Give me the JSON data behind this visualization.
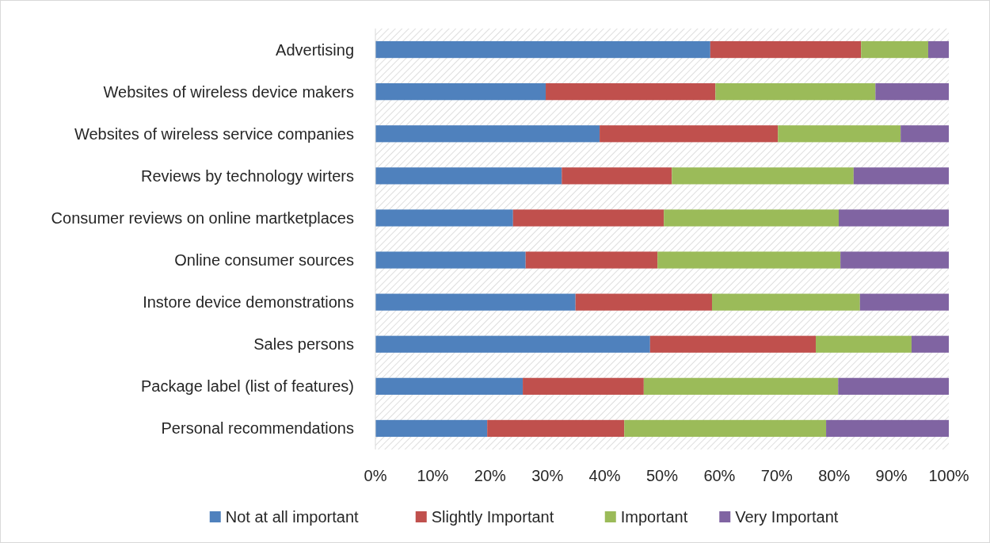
{
  "chart_data": {
    "type": "bar",
    "orientation": "horizontal",
    "stacked": true,
    "categories": [
      "Advertising",
      "Websites of wireless device makers",
      "Websites of wireless service companies",
      "Reviews by technology wirters",
      "Consumer reviews on online martketplaces",
      "Online consumer sources",
      "Instore device demonstrations",
      "Sales persons",
      "Package label (list of features)",
      "Personal recommendations"
    ],
    "series": [
      {
        "name": "Not at all important",
        "color": "#4f81bd",
        "values": [
          58.4,
          29.7,
          39.1,
          32.5,
          24.0,
          26.2,
          34.9,
          47.9,
          25.7,
          19.5
        ]
      },
      {
        "name": "Slightly Important",
        "color": "#c0504d",
        "values": [
          26.3,
          29.6,
          31.1,
          19.2,
          26.3,
          23.0,
          23.8,
          28.9,
          21.1,
          23.9
        ]
      },
      {
        "name": "Important",
        "color": "#9bbb59",
        "values": [
          11.7,
          27.9,
          21.4,
          31.7,
          30.5,
          31.9,
          25.8,
          16.7,
          33.9,
          35.2
        ]
      },
      {
        "name": "Very Important",
        "color": "#8064a2",
        "values": [
          3.6,
          12.8,
          8.4,
          16.6,
          19.2,
          18.9,
          15.5,
          6.5,
          19.3,
          21.4
        ]
      }
    ],
    "xlim": [
      0,
      100
    ],
    "xticks": [
      {
        "value": 0,
        "label": "0%"
      },
      {
        "value": 10,
        "label": "10%"
      },
      {
        "value": 20,
        "label": "20%"
      },
      {
        "value": 30,
        "label": "30%"
      },
      {
        "value": 40,
        "label": "40%"
      },
      {
        "value": 50,
        "label": "50%"
      },
      {
        "value": 60,
        "label": "60%"
      },
      {
        "value": 70,
        "label": "70%"
      },
      {
        "value": 80,
        "label": "80%"
      },
      {
        "value": 90,
        "label": "90%"
      },
      {
        "value": 100,
        "label": "100%"
      }
    ],
    "legend": "bottom"
  }
}
